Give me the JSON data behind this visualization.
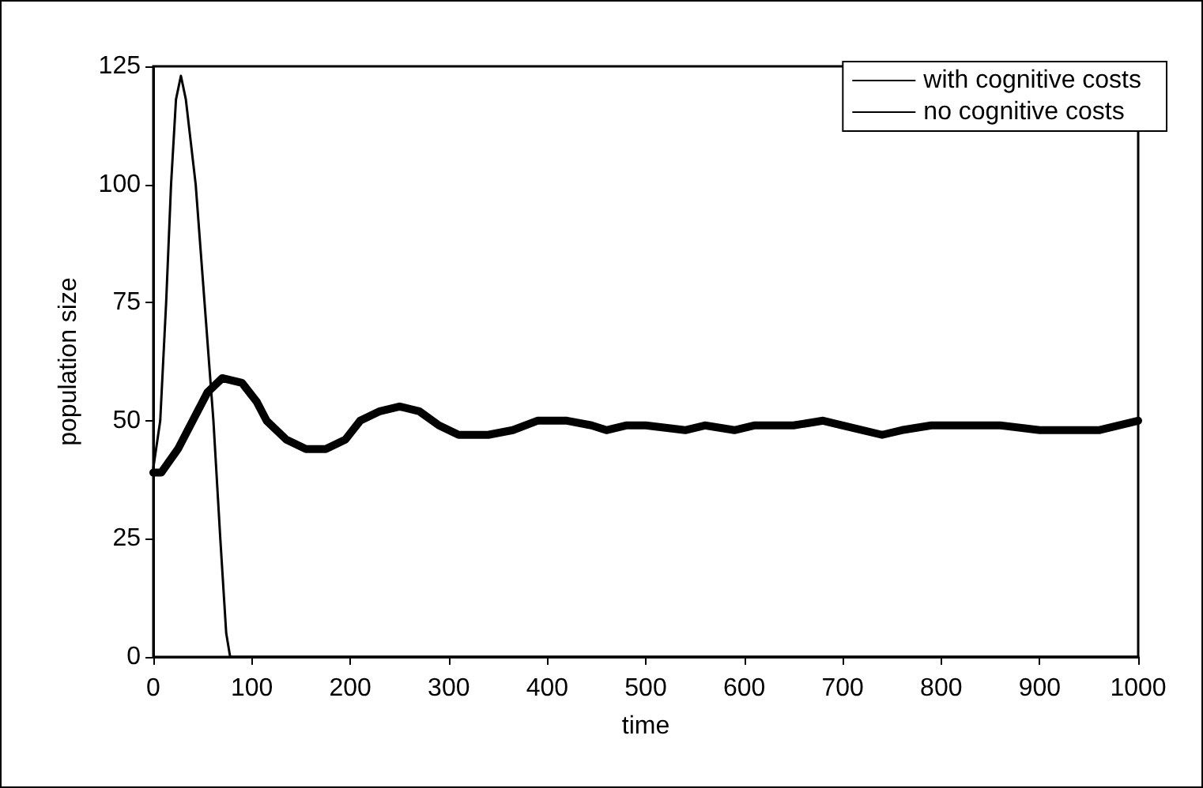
{
  "chart_data": {
    "type": "line",
    "xlabel": "time",
    "ylabel": "population size",
    "xlim": [
      0,
      1000
    ],
    "xticks": [
      0,
      100,
      200,
      300,
      400,
      500,
      600,
      700,
      800,
      900,
      1000
    ],
    "ylim": [
      0,
      125
    ],
    "yticks": [
      0,
      25,
      50,
      75,
      100,
      125
    ],
    "grid": false,
    "legend": "top right",
    "marker": "none",
    "line_style": "solid",
    "series": [
      {
        "name": "with cognitive costs",
        "color": "#000000",
        "x": [
          0,
          8,
          25,
          40,
          55,
          70,
          90,
          105,
          115,
          135,
          155,
          175,
          195,
          210,
          230,
          250,
          270,
          290,
          310,
          340,
          365,
          390,
          420,
          445,
          460,
          480,
          500,
          540,
          560,
          590,
          610,
          650,
          680,
          700,
          740,
          760,
          790,
          820,
          860,
          900,
          940,
          960,
          1000
        ],
        "values": [
          39,
          39,
          44,
          50,
          56,
          59,
          58,
          54,
          50,
          46,
          44,
          44,
          46,
          50,
          52,
          53,
          52,
          49,
          47,
          47,
          48,
          50,
          50,
          49,
          48,
          49,
          49,
          48,
          49,
          48,
          49,
          49,
          50,
          49,
          47,
          48,
          49,
          49,
          49,
          48,
          48,
          48,
          50
        ]
      },
      {
        "name": "no cognitive costs",
        "color": "#000000",
        "x": [
          0,
          7,
          13,
          18,
          23,
          28,
          33,
          43,
          52,
          61,
          68,
          74,
          78,
          1000
        ],
        "values": [
          40,
          50,
          75,
          100,
          118,
          123,
          118,
          100,
          75,
          50,
          25,
          5,
          0,
          0
        ]
      }
    ]
  }
}
